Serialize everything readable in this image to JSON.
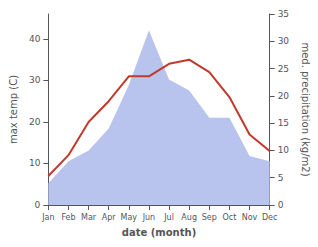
{
  "chart_data": {
    "type": "line",
    "xlabel": "date (month)",
    "ylabel": "max temp (C)",
    "y2label": "med. precipitation (kg/m2)",
    "categories": [
      "Jan",
      "Feb",
      "Mar",
      "Apr",
      "May",
      "Jun",
      "Jul",
      "Aug",
      "Sep",
      "Oct",
      "Nov",
      "Dec"
    ],
    "series": [
      {
        "type": "area",
        "axis": "y2",
        "color": "#b8c4ee",
        "values": [
          4,
          8,
          10,
          14,
          22,
          32,
          23,
          21,
          16,
          16,
          9,
          8
        ]
      },
      {
        "type": "line",
        "color": "#c0392b",
        "values": [
          7,
          12,
          20,
          25,
          31,
          31,
          34,
          35,
          32,
          26,
          17,
          13
        ]
      }
    ],
    "ylim": [
      0,
      46
    ],
    "yticks": [
      0,
      10,
      20,
      30,
      40
    ],
    "y2lim": [
      0,
      35
    ],
    "y2ticks": [
      0,
      5,
      10,
      15,
      20,
      25,
      30,
      35
    ],
    "grid": false
  }
}
